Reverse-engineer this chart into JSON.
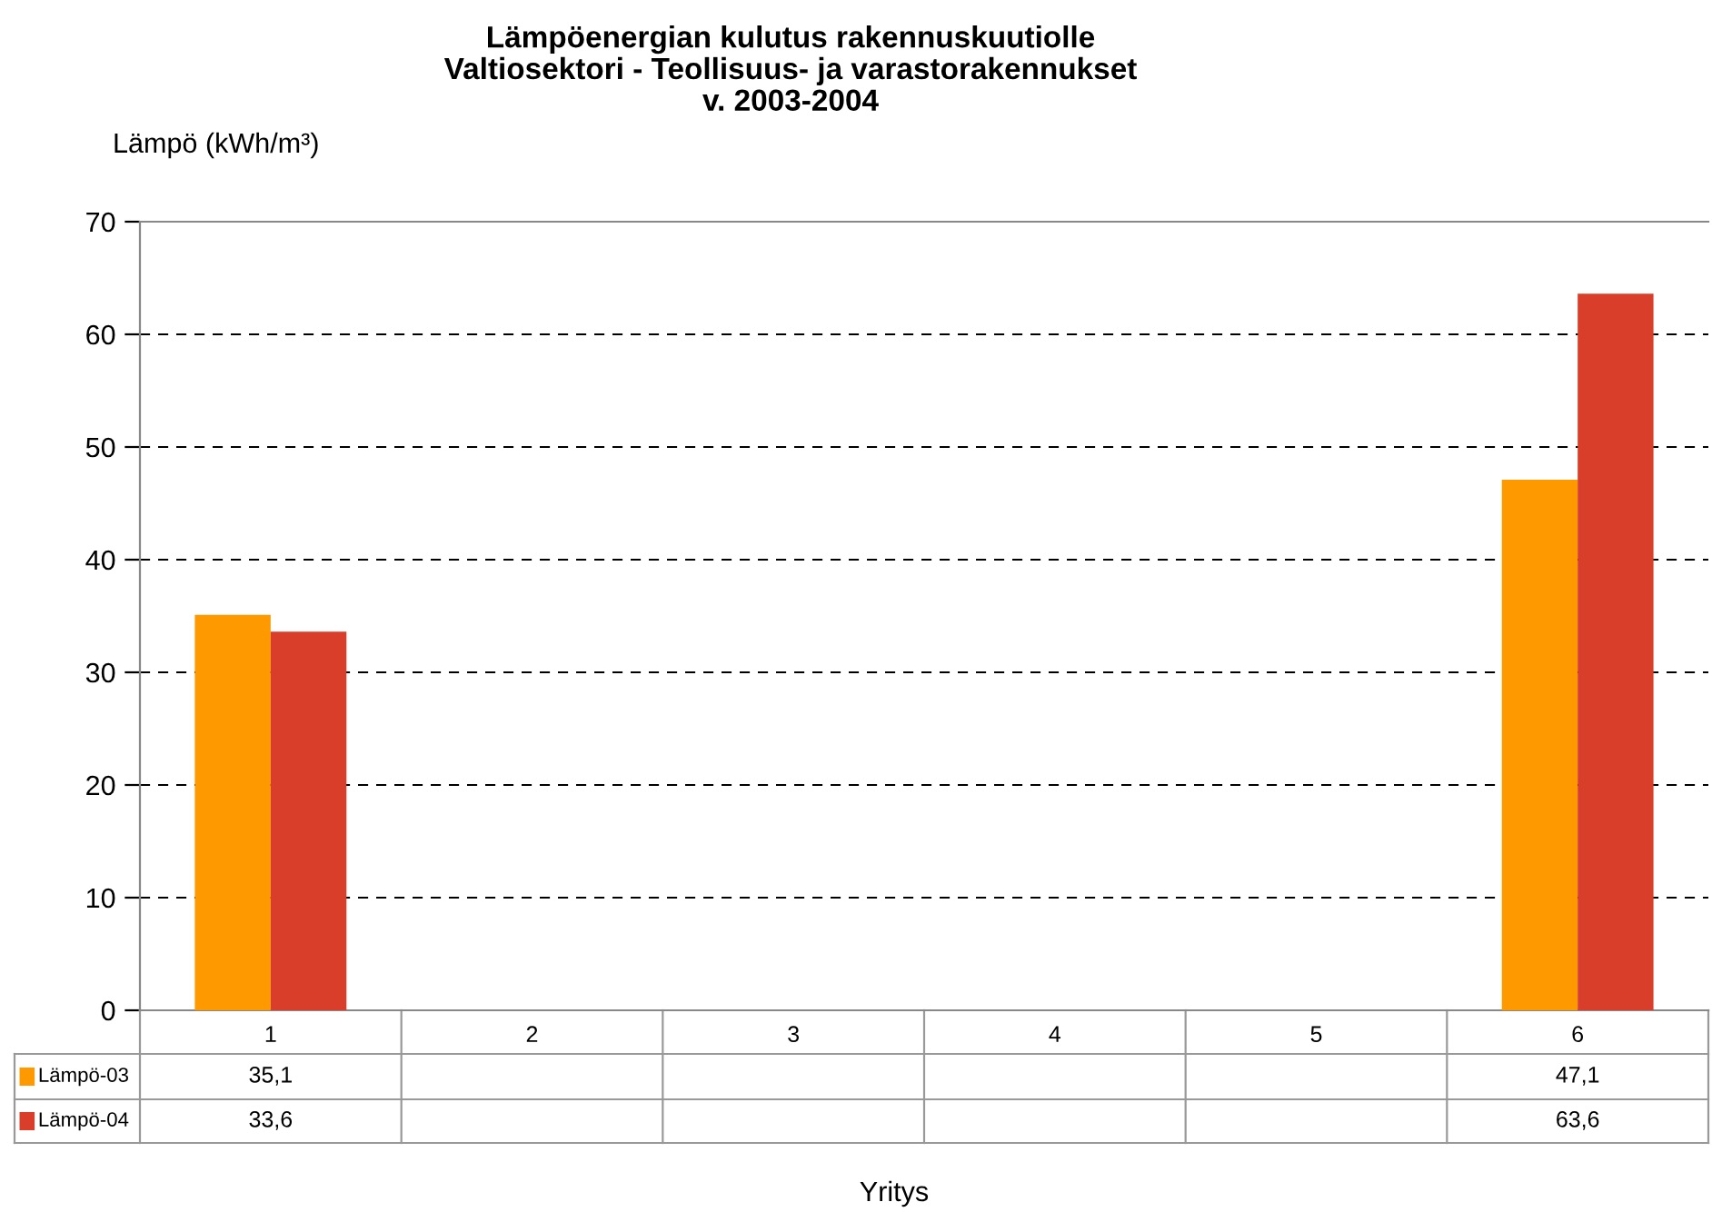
{
  "chart_data": {
    "type": "bar",
    "title": "Lämpöenergian kulutus rakennuskuutiolle\nValtiosektori - Teollisuus- ja varastorakennukset\nv. 2003-2004",
    "ylabel": "Lämpö (kWh/m³)",
    "xlabel": "Yritys",
    "categories": [
      "1",
      "2",
      "3",
      "4",
      "5",
      "6"
    ],
    "series": [
      {
        "name": "Lämpö-03",
        "color": "#ff9900",
        "values": [
          35.1,
          null,
          null,
          null,
          null,
          47.1
        ],
        "value_labels": [
          "35,1",
          null,
          null,
          null,
          null,
          "47,1"
        ]
      },
      {
        "name": "Lämpö-04",
        "color": "#d93e2b",
        "values": [
          33.6,
          null,
          null,
          null,
          null,
          63.6
        ],
        "value_labels": [
          "33,6",
          null,
          null,
          null,
          null,
          "63,6"
        ]
      }
    ],
    "ylim": [
      0,
      70
    ],
    "yticks": [
      0,
      10,
      20,
      30,
      40,
      50,
      60,
      70
    ],
    "grid": "y",
    "legend": "bottom left"
  }
}
